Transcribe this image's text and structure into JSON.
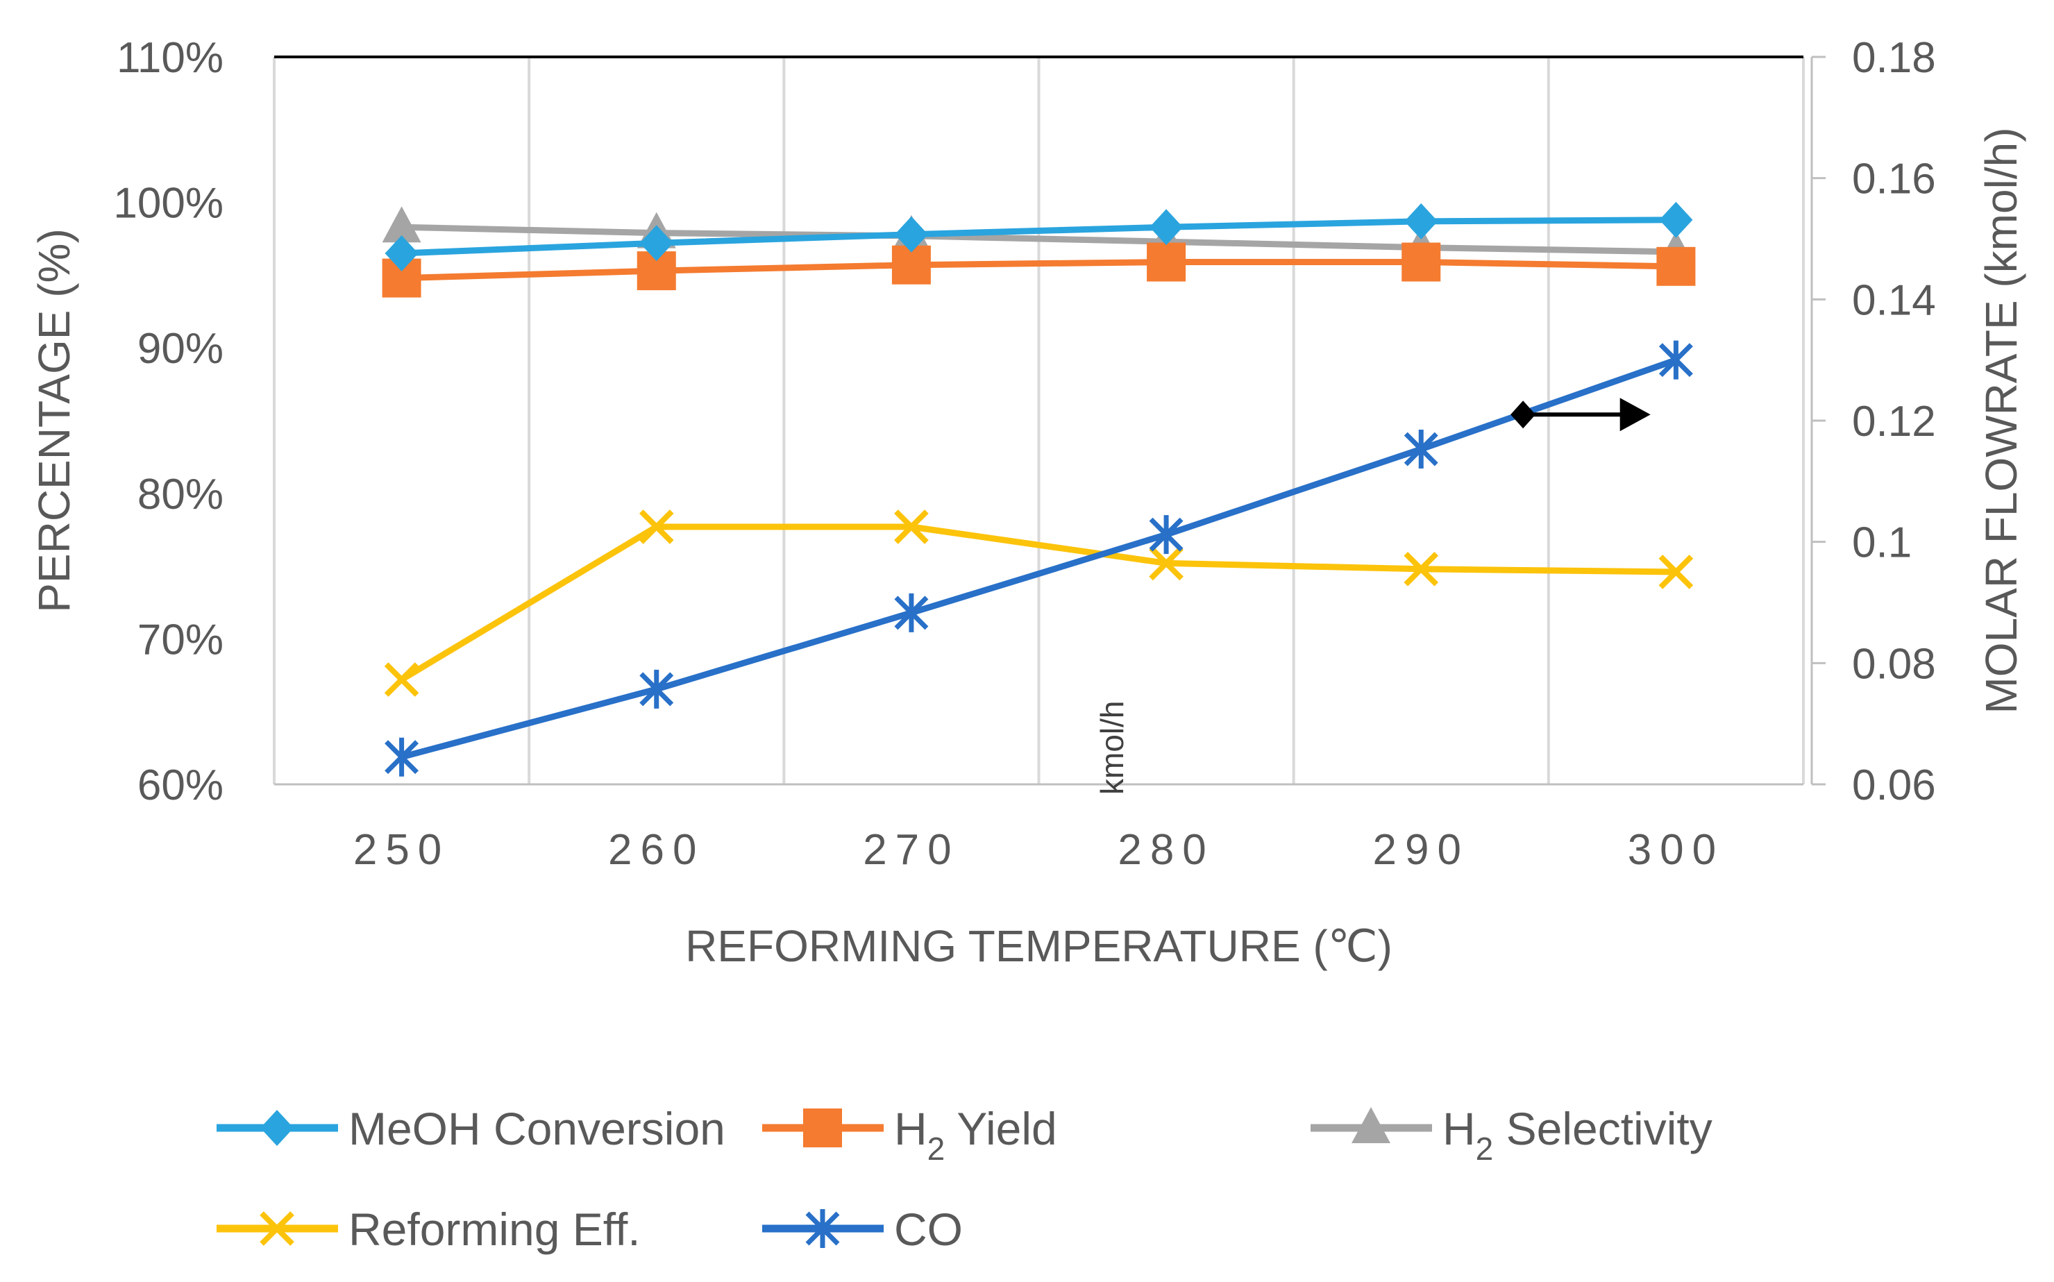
{
  "chart_data": {
    "type": "line",
    "title": "",
    "xlabel": "REFORMING TEMPERATURE (℃)",
    "ylabel": "PERCENTAGE (%)",
    "y2label": "MOLAR FLOWRATE (kmol/h)",
    "x": [
      250,
      260,
      270,
      280,
      290,
      300
    ],
    "x_ticks": [
      "250",
      "260",
      "270",
      "280",
      "290",
      "300"
    ],
    "ylim": [
      0.6,
      1.1
    ],
    "y_ticks": [
      "60%",
      "70%",
      "80%",
      "90%",
      "100%",
      "110%"
    ],
    "y2lim": [
      0.06,
      0.18
    ],
    "y2_ticks": [
      "0.06",
      "0.08",
      "0.1",
      "0.12",
      "0.14",
      "0.16",
      "0.18"
    ],
    "annotation": "kmol/h",
    "arrow": {
      "from_x": 294,
      "to_x": 299,
      "y2": 0.121,
      "direction": "right-axis"
    },
    "series": [
      {
        "name": "MeOH Conversion",
        "legend_prefix": "MeOH Conversion",
        "legend_sub": "",
        "legend_suffix": "",
        "axis": "left",
        "marker": "diamond",
        "color": "#2aa4de",
        "values": [
          0.965,
          0.972,
          0.978,
          0.983,
          0.987,
          0.988
        ]
      },
      {
        "name": "H2 Yield",
        "legend_prefix": "H",
        "legend_sub": "2",
        "legend_suffix": " Yield",
        "axis": "left",
        "marker": "square",
        "color": "#f47b30",
        "values": [
          0.948,
          0.953,
          0.957,
          0.959,
          0.959,
          0.956
        ]
      },
      {
        "name": "H2 Selectivity",
        "legend_prefix": "H",
        "legend_sub": "2",
        "legend_suffix": " Selectivity",
        "axis": "left",
        "marker": "triangle",
        "color": "#a5a5a5",
        "values": [
          0.983,
          0.979,
          0.977,
          0.973,
          0.969,
          0.966
        ]
      },
      {
        "name": "Reforming Eff.",
        "legend_prefix": "Reforming Eff.",
        "legend_sub": "",
        "legend_suffix": "",
        "axis": "left",
        "marker": "x",
        "color": "#fcc30b",
        "values": [
          0.672,
          0.777,
          0.777,
          0.752,
          0.748,
          0.746
        ]
      },
      {
        "name": "CO",
        "legend_prefix": "CO",
        "legend_sub": "",
        "legend_suffix": "",
        "axis": "right",
        "marker": "star",
        "color": "#2870c8",
        "values": [
          0.0645,
          0.0757,
          0.0883,
          0.1012,
          0.1153,
          0.13
        ]
      }
    ],
    "legend_position": "bottom"
  }
}
